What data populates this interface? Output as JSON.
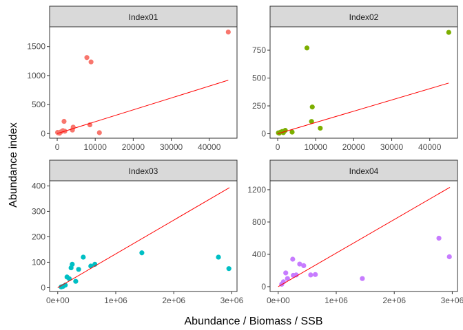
{
  "chart_data": {
    "type": "scatter",
    "xlabel": "Abundance / Biomass / SSB",
    "ylabel": "Abundance index",
    "regression_line_color": "#ff0000",
    "grid": false,
    "legend": "none",
    "panels": [
      {
        "name": "Index01",
        "color": "#F8766D",
        "xlim": [
          -2000,
          47300
        ],
        "ylim": [
          -80,
          1840
        ],
        "xticks": [
          0,
          10000,
          20000,
          30000,
          40000
        ],
        "xtick_labels": [
          "0",
          "10000",
          "20000",
          "30000",
          "40000"
        ],
        "yticks": [
          0,
          500,
          1000,
          1500
        ],
        "ytick_labels": [
          "0",
          "500",
          "1000",
          "1500"
        ],
        "points": [
          [
            45000,
            1750
          ],
          [
            7800,
            1310
          ],
          [
            8900,
            1235
          ],
          [
            8600,
            150
          ],
          [
            4200,
            110
          ],
          [
            4000,
            60
          ],
          [
            1800,
            210
          ],
          [
            11100,
            15
          ],
          [
            2000,
            40
          ],
          [
            1000,
            30
          ],
          [
            300,
            10
          ],
          [
            600,
            5
          ],
          [
            1500,
            50
          ],
          [
            100,
            20
          ]
        ],
        "fit": [
          [
            0,
            0
          ],
          [
            45000,
            920
          ]
        ]
      },
      {
        "name": "Index02",
        "color": "#7CAE00",
        "xlim": [
          -2000,
          47300
        ],
        "ylim": [
          -40,
          960
        ],
        "xticks": [
          0,
          10000,
          20000,
          30000,
          40000
        ],
        "xtick_labels": [
          "0",
          "10000",
          "20000",
          "30000",
          "40000"
        ],
        "yticks": [
          0,
          250,
          500,
          750
        ],
        "ytick_labels": [
          "0",
          "250",
          "500",
          "750"
        ],
        "points": [
          [
            45000,
            910
          ],
          [
            7700,
            770
          ],
          [
            9100,
            240
          ],
          [
            8900,
            110
          ],
          [
            11200,
            50
          ],
          [
            3800,
            15
          ],
          [
            2000,
            30
          ],
          [
            1500,
            10
          ],
          [
            800,
            15
          ],
          [
            400,
            5
          ],
          [
            200,
            8
          ],
          [
            1200,
            20
          ]
        ],
        "fit": [
          [
            0,
            0
          ],
          [
            45000,
            455
          ]
        ]
      },
      {
        "name": "Index03",
        "color": "#00BFC4",
        "xlim": [
          -140000,
          3090000
        ],
        "ylim": [
          -15,
          420
        ],
        "xticks": [
          0,
          1000000,
          2000000,
          3000000
        ],
        "xtick_labels": [
          "0e+00",
          "1e+06",
          "2e+06",
          "3e+06"
        ],
        "yticks": [
          0,
          100,
          200,
          300,
          400
        ],
        "ytick_labels": [
          "0",
          "100",
          "200",
          "300",
          "400"
        ],
        "points": [
          [
            2770000,
            120
          ],
          [
            2950000,
            75
          ],
          [
            1450000,
            137
          ],
          [
            440000,
            120
          ],
          [
            640000,
            92
          ],
          [
            570000,
            85
          ],
          [
            250000,
            92
          ],
          [
            230000,
            78
          ],
          [
            360000,
            72
          ],
          [
            160000,
            42
          ],
          [
            200000,
            35
          ],
          [
            310000,
            25
          ],
          [
            130000,
            10
          ],
          [
            90000,
            5
          ],
          [
            60000,
            3
          ]
        ],
        "fit": [
          [
            0,
            0
          ],
          [
            2960000,
            393
          ]
        ]
      },
      {
        "name": "Index04",
        "color": "#C77CFF",
        "xlim": [
          -140000,
          3090000
        ],
        "ylim": [
          -60,
          1310
        ],
        "xticks": [
          0,
          1000000,
          2000000,
          3000000
        ],
        "xtick_labels": [
          "0e+00",
          "1e+06",
          "2e+06",
          "3e+06"
        ],
        "yticks": [
          0,
          400,
          800,
          1200
        ],
        "ytick_labels": [
          "0",
          "400",
          "800",
          "1200"
        ],
        "points": [
          [
            2770000,
            600
          ],
          [
            2950000,
            370
          ],
          [
            1450000,
            100
          ],
          [
            250000,
            340
          ],
          [
            370000,
            280
          ],
          [
            440000,
            260
          ],
          [
            130000,
            170
          ],
          [
            260000,
            140
          ],
          [
            310000,
            145
          ],
          [
            560000,
            145
          ],
          [
            640000,
            150
          ],
          [
            160000,
            100
          ],
          [
            90000,
            60
          ],
          [
            60000,
            30
          ]
        ],
        "fit": [
          [
            0,
            0
          ],
          [
            2960000,
            1230
          ]
        ]
      }
    ]
  }
}
